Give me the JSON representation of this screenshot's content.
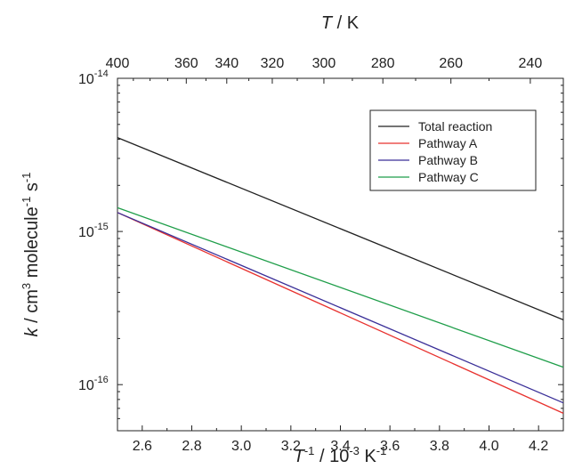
{
  "chart_data": {
    "type": "line",
    "xlabel_bottom": {
      "base": "T",
      "sup1": "-1",
      "mid": " / 10",
      "sup2": "-3",
      "unit": " K",
      "sup3": "-1"
    },
    "xlabel_top": {
      "italic": "T",
      "rest": " / K"
    },
    "ylabel": {
      "italic": "k",
      "p1": " / cm",
      "s1": "3",
      "p2": " molecule",
      "s2": "-1",
      "p3": " s",
      "s3": "-1"
    },
    "xlim": [
      2.5,
      4.3
    ],
    "ylim": [
      5e-17,
      1e-14
    ],
    "y_scale": "log",
    "x_ticks": [
      "2.6",
      "2.8",
      "3.0",
      "3.2",
      "3.4",
      "3.6",
      "3.8",
      "4.0",
      "4.2"
    ],
    "x_tick_values": [
      2.6,
      2.8,
      3.0,
      3.2,
      3.4,
      3.6,
      3.8,
      4.0,
      4.2
    ],
    "top_ticks": [
      "400",
      "360",
      "340",
      "320",
      "300",
      "280",
      "260",
      "240"
    ],
    "top_tick_values": [
      400,
      360,
      340,
      320,
      300,
      280,
      260,
      240
    ],
    "y_ticks": [
      {
        "value": 1e-14,
        "base": "10",
        "exp": "-14"
      },
      {
        "value": 1e-15,
        "base": "10",
        "exp": "-15"
      },
      {
        "value": 1e-16,
        "base": "10",
        "exp": "-16"
      }
    ],
    "legend_position": "top-right",
    "series": [
      {
        "name": "Total reaction",
        "color": "#222222",
        "x": [
          2.5,
          4.3
        ],
        "y": [
          4.1e-15,
          2.65e-16
        ]
      },
      {
        "name": "Pathway A",
        "color": "#e8322f",
        "x": [
          2.5,
          4.3
        ],
        "y": [
          1.33e-15,
          6.5e-17
        ]
      },
      {
        "name": "Pathway B",
        "color": "#3a2f98",
        "x": [
          2.5,
          4.3
        ],
        "y": [
          1.33e-15,
          7.6e-17
        ]
      },
      {
        "name": "Pathway C",
        "color": "#1f9e4a",
        "x": [
          2.5,
          4.3
        ],
        "y": [
          1.43e-15,
          1.3e-16
        ]
      }
    ]
  }
}
